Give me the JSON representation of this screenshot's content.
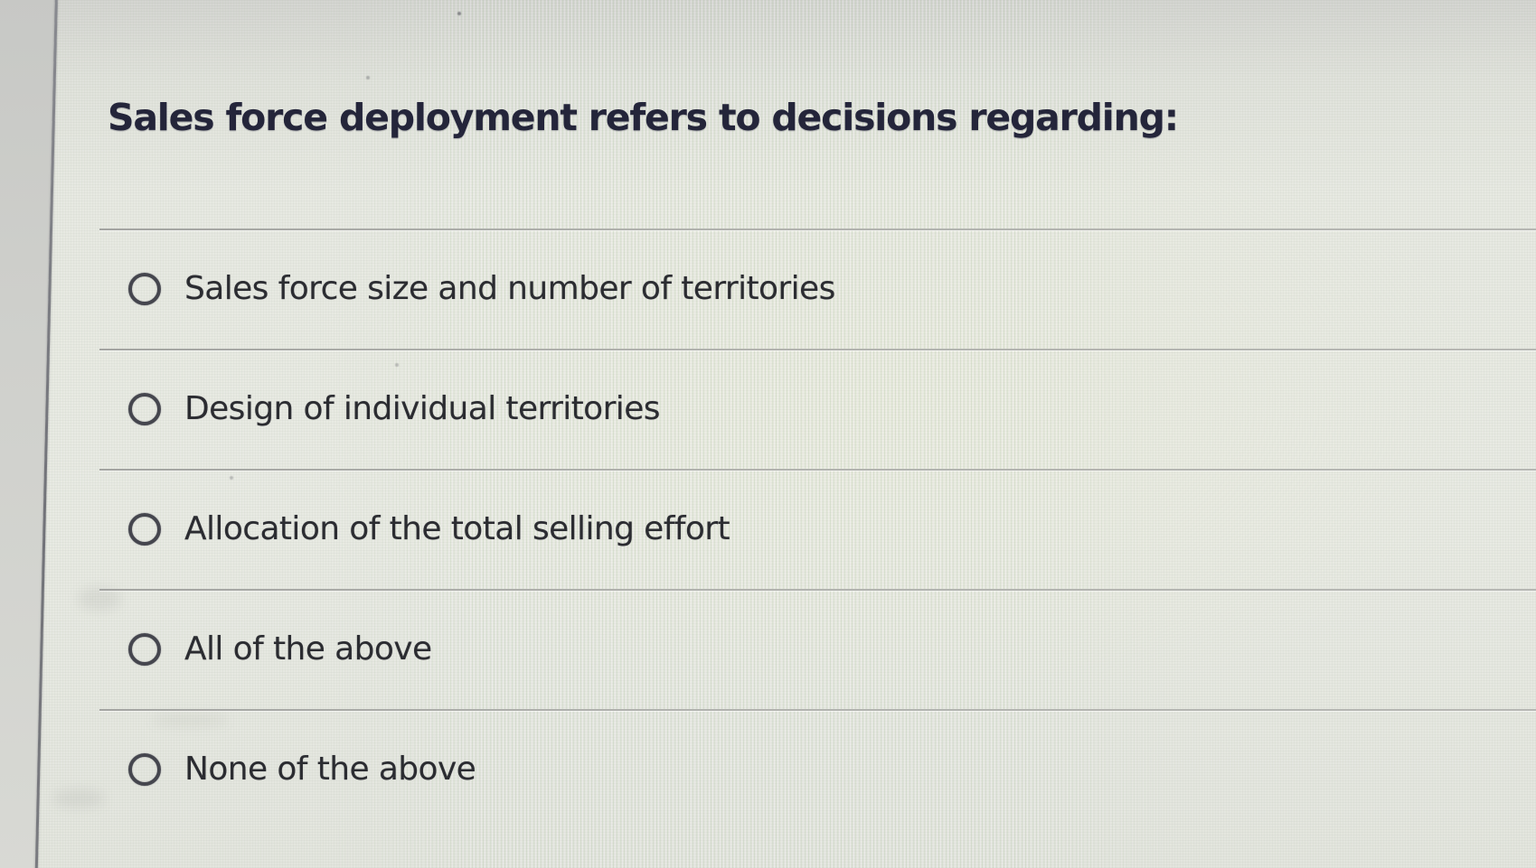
{
  "question": {
    "title": "Sales force deployment refers to decisions regarding:"
  },
  "options": [
    {
      "label": "Sales force size and number of territories",
      "selected": false
    },
    {
      "label": "Design of individual territories",
      "selected": false
    },
    {
      "label": "Allocation of the total selling effort",
      "selected": false
    },
    {
      "label": "All of the above",
      "selected": false
    },
    {
      "label": "None of the above",
      "selected": false
    }
  ],
  "colors": {
    "background": "#e7e9e2",
    "title_text": "#24253a",
    "option_text": "#2b2c31",
    "divider": "#b1b2ae",
    "radio_border": "#45464e",
    "left_edge_line": "#7a7b80"
  }
}
